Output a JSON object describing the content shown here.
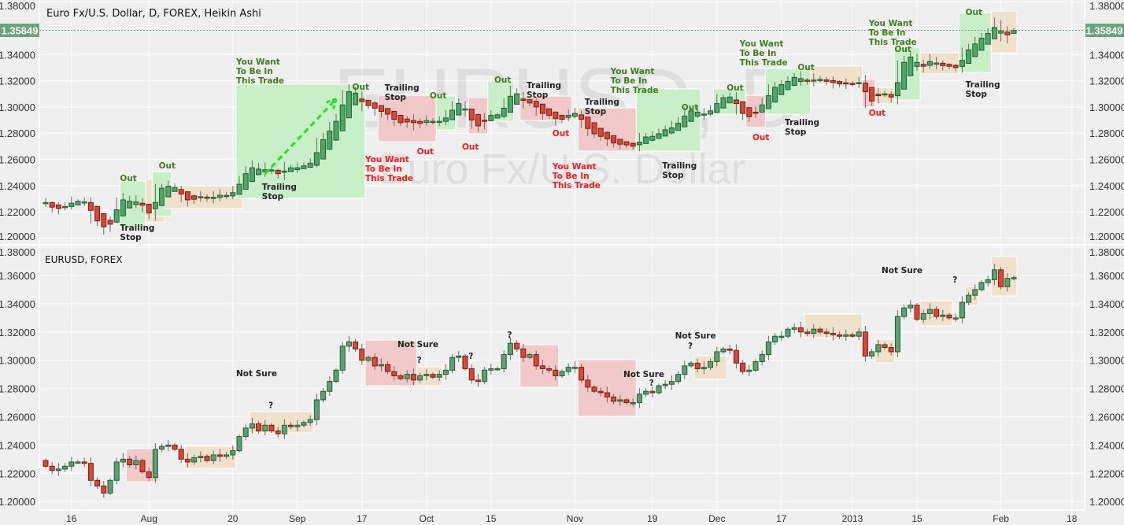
{
  "top_panel": {
    "title": "Euro Fx/U.S. Dollar, D, FOREX, Heikin Ashi",
    "watermark_symbol": "EURUSD, D",
    "watermark_name": "Euro Fx/U.S. Dollar"
  },
  "bottom_panel": {
    "title": "EURUSD, FOREX"
  },
  "last_price": "1.35849",
  "colors": {
    "background": "#efefef",
    "grid": "#f8f8f8",
    "up_fill": "#5e9f74",
    "up_border": "#1f5c32",
    "ha_up_fill": "#4fa765",
    "down_fill": "#d9473a",
    "down_border": "#7a1a10",
    "price_tag": "#6aa37a",
    "box_green": "#c8efc8",
    "box_red": "#f2c9c9",
    "box_tan": "#efe1cc",
    "label_green": "#3e7d1e",
    "label_red": "#ff1a1a",
    "label_black": "#222222",
    "arrow": "#1ee61e"
  },
  "chart_data": [
    {
      "type": "candlestick",
      "panel": "top",
      "title": "Euro Fx/U.S. Dollar, D, FOREX, Heikin Ashi",
      "style": "heikin-ashi (derived from the daily OHLC below)",
      "ylim": [
        1.2,
        1.38
      ],
      "yticks": [
        "1.20000",
        "1.22000",
        "1.24000",
        "1.26000",
        "1.28000",
        "1.30000",
        "1.32000",
        "1.34000",
        "1.36000",
        "1.38000"
      ],
      "grid": true,
      "boxes": [
        {
          "kind": "green",
          "from": "2012-07-26",
          "to": "2012-07-31",
          "top": 1.2435,
          "bottom": 1.208
        },
        {
          "kind": "tan",
          "from": "2012-08-01",
          "to": "2012-08-03",
          "top": 1.2447,
          "bottom": 1.2122
        },
        {
          "kind": "green",
          "from": "2012-08-02",
          "to": "2012-08-06",
          "top": 1.2507,
          "bottom": 1.2165
        },
        {
          "kind": "tan",
          "from": "2012-08-06",
          "to": "2012-08-21",
          "top": 1.2399,
          "bottom": 1.2225
        },
        {
          "kind": "green",
          "from": "2012-08-21",
          "to": "2012-09-17",
          "top": 1.3174,
          "bottom": 1.2303
        },
        {
          "kind": "red",
          "from": "2012-09-20",
          "to": "2012-10-02",
          "top": 1.3089,
          "bottom": 1.2735
        },
        {
          "kind": "green",
          "from": "2012-10-03",
          "to": "2012-10-05",
          "top": 1.3083,
          "bottom": 1.2825
        },
        {
          "kind": "red",
          "from": "2012-10-10",
          "to": "2012-10-12",
          "top": 1.3071,
          "bottom": 1.2795
        },
        {
          "kind": "green",
          "from": "2012-10-15",
          "to": "2012-10-18",
          "top": 1.3197,
          "bottom": 1.2891
        },
        {
          "kind": "red",
          "from": "2012-10-22",
          "to": "2012-10-31",
          "top": 1.3083,
          "bottom": 1.2897
        },
        {
          "kind": "red",
          "from": "2012-11-02",
          "to": "2012-11-14",
          "top": 1.2993,
          "bottom": 1.2663
        },
        {
          "kind": "green",
          "from": "2012-11-15",
          "to": "2012-11-28",
          "top": 1.3138,
          "bottom": 1.2663
        },
        {
          "kind": "green",
          "from": "2012-12-03",
          "to": "2012-12-07",
          "top": 1.3138,
          "bottom": 1.2945
        },
        {
          "kind": "red",
          "from": "2012-12-10",
          "to": "2012-12-12",
          "top": 1.3089,
          "bottom": 1.2843
        },
        {
          "kind": "green",
          "from": "2012-12-13",
          "to": "2012-12-21",
          "top": 1.3294,
          "bottom": 1.2945
        },
        {
          "kind": "tan",
          "from": "2012-12-24",
          "to": "2013-01-02",
          "top": 1.3312,
          "bottom": 1.3174
        },
        {
          "kind": "red",
          "from": "2013-01-03",
          "to": "2013-01-04",
          "top": 1.321,
          "bottom": 1.3
        },
        {
          "kind": "tan",
          "from": "2013-01-07",
          "to": "2013-01-09",
          "top": 1.3149,
          "bottom": 1.3024
        },
        {
          "kind": "green",
          "from": "2013-01-10",
          "to": "2013-01-15",
          "top": 1.3456,
          "bottom": 1.3053
        },
        {
          "kind": "tan",
          "from": "2013-01-16",
          "to": "2013-01-23",
          "top": 1.3414,
          "bottom": 1.3252
        },
        {
          "kind": "green",
          "from": "2013-01-24",
          "to": "2013-01-30",
          "top": 1.372,
          "bottom": 1.3264
        },
        {
          "kind": "tan",
          "from": "2013-01-31",
          "to": "2013-02-05",
          "top": 1.3732,
          "bottom": 1.3414
        }
      ],
      "labels": [
        {
          "text": [
            "Out"
          ],
          "color": "green",
          "date": "2012-07-26",
          "price": 1.2489
        },
        {
          "text": [
            "Trailing",
            "Stop"
          ],
          "color": "black",
          "date": "2012-07-26",
          "price": 1.211
        },
        {
          "text": [
            "Out"
          ],
          "color": "green",
          "date": "2012-08-03",
          "price": 1.2585
        },
        {
          "text": [
            "You Want",
            "To Be In",
            "This Trade"
          ],
          "color": "green",
          "date": "2012-08-21",
          "price": 1.3378
        },
        {
          "text": [
            "Trailing",
            "Stop"
          ],
          "color": "black",
          "date": "2012-08-27",
          "price": 1.2423
        },
        {
          "text": [
            "Out"
          ],
          "color": "green",
          "date": "2012-09-14",
          "price": 1.3186
        },
        {
          "text": [
            "Trailing",
            "Stop"
          ],
          "color": "black",
          "date": "2012-09-21",
          "price": 1.318
        },
        {
          "text": [
            "Out"
          ],
          "color": "red",
          "date": "2012-09-28",
          "price": 1.2693
        },
        {
          "text": [
            "You Want",
            "To Be In",
            "This Trade"
          ],
          "color": "red",
          "date": "2012-09-18",
          "price": 1.2633
        },
        {
          "text": [
            "Out"
          ],
          "color": "green",
          "date": "2012-10-02",
          "price": 1.312
        },
        {
          "text": [
            "Out"
          ],
          "color": "red",
          "date": "2012-10-09",
          "price": 1.2729
        },
        {
          "text": [
            "Out"
          ],
          "color": "green",
          "date": "2012-10-16",
          "price": 1.324
        },
        {
          "text": [
            "Trailing",
            "Stop"
          ],
          "color": "black",
          "date": "2012-10-23",
          "price": 1.3198
        },
        {
          "text": [
            "Out"
          ],
          "color": "red",
          "date": "2012-10-29",
          "price": 1.2831
        },
        {
          "text": [
            "Trailing",
            "Stop"
          ],
          "color": "black",
          "date": "2012-11-05",
          "price": 1.3071
        },
        {
          "text": [
            "You Want",
            "To Be In",
            "This Trade"
          ],
          "color": "red",
          "date": "2012-10-29",
          "price": 1.2579
        },
        {
          "text": [
            "You Want",
            "To Be In",
            "This Trade"
          ],
          "color": "green",
          "date": "2012-11-09",
          "price": 1.3306
        },
        {
          "text": [
            "Out"
          ],
          "color": "green",
          "date": "2012-11-26",
          "price": 1.3029
        },
        {
          "text": [
            "Trailing",
            "Stop"
          ],
          "color": "black",
          "date": "2012-11-21",
          "price": 1.2585
        },
        {
          "text": [
            "Out"
          ],
          "color": "green",
          "date": "2012-12-05",
          "price": 1.318
        },
        {
          "text": [
            "Out"
          ],
          "color": "red",
          "date": "2012-12-11",
          "price": 1.28
        },
        {
          "text": [
            "You Want",
            "To Be In",
            "This Trade"
          ],
          "color": "green",
          "date": "2012-12-07",
          "price": 1.3516
        },
        {
          "text": [
            "Trailing",
            "Stop"
          ],
          "color": "black",
          "date": "2012-12-18",
          "price": 1.2915
        },
        {
          "text": [
            "Out"
          ],
          "color": "green",
          "date": "2012-12-20",
          "price": 1.3336
        },
        {
          "text": [
            "Out"
          ],
          "color": "red",
          "date": "2013-01-04",
          "price": 1.2987
        },
        {
          "text": [
            "You Want",
            "To Be In",
            "This Trade"
          ],
          "color": "green",
          "date": "2013-01-04",
          "price": 1.3672
        },
        {
          "text": [
            "Out"
          ],
          "color": "green",
          "date": "2013-01-10",
          "price": 1.3474
        },
        {
          "text": [
            "Out"
          ],
          "color": "green",
          "date": "2013-01-25",
          "price": 1.3756
        },
        {
          "text": [
            "Trailing",
            "Stop"
          ],
          "color": "black",
          "date": "2013-01-25",
          "price": 1.3204
        }
      ],
      "arrow": {
        "from_date": "2012-08-27",
        "from_price": 1.249,
        "to_date": "2012-09-11",
        "to_price": 1.306,
        "style": "dashed"
      }
    },
    {
      "type": "candlestick",
      "panel": "bottom",
      "title": "EURUSD, FOREX",
      "ylim": [
        1.2,
        1.38
      ],
      "yticks": [
        "1.20000",
        "1.22000",
        "1.24000",
        "1.26000",
        "1.28000",
        "1.30000",
        "1.32000",
        "1.34000",
        "1.36000",
        "1.38000"
      ],
      "grid": true,
      "xticks": [
        {
          "label": "16",
          "date": "2012-07-16"
        },
        {
          "label": "Aug",
          "date": "2012-08-01"
        },
        {
          "label": "20",
          "date": "2012-08-20"
        },
        {
          "label": "Sep",
          "date": "2012-09-03"
        },
        {
          "label": "17",
          "date": "2012-09-17"
        },
        {
          "label": "Oct",
          "date": "2012-10-01"
        },
        {
          "label": "15",
          "date": "2012-10-15"
        },
        {
          "label": "Nov",
          "date": "2012-11-01"
        },
        {
          "label": "19",
          "date": "2012-11-19"
        },
        {
          "label": "Dec",
          "date": "2012-12-03"
        },
        {
          "label": "17",
          "date": "2012-12-17"
        },
        {
          "label": "2013",
          "date": "2013-01-01"
        },
        {
          "label": "15",
          "date": "2013-01-15"
        },
        {
          "label": "Feb",
          "date": "2013-02-01"
        },
        {
          "label": "18",
          "date": "2013-02-18"
        }
      ],
      "close": [
        1.225,
        1.222,
        1.223,
        1.225,
        1.228,
        1.228,
        1.227,
        1.215,
        1.211,
        1.206,
        1.215,
        1.228,
        1.23,
        1.226,
        1.229,
        1.221,
        1.217,
        1.237,
        1.239,
        1.24,
        1.237,
        1.23,
        1.228,
        1.231,
        1.232,
        1.229,
        1.233,
        1.232,
        1.233,
        1.236,
        1.246,
        1.252,
        1.255,
        1.25,
        1.254,
        1.25,
        1.248,
        1.254,
        1.253,
        1.254,
        1.256,
        1.258,
        1.272,
        1.278,
        1.285,
        1.293,
        1.31,
        1.313,
        1.308,
        1.3,
        1.302,
        1.296,
        1.297,
        1.292,
        1.289,
        1.287,
        1.29,
        1.286,
        1.289,
        1.29,
        1.288,
        1.29,
        1.293,
        1.302,
        1.303,
        1.294,
        1.286,
        1.285,
        1.293,
        1.294,
        1.294,
        1.304,
        1.312,
        1.308,
        1.302,
        1.304,
        1.296,
        1.294,
        1.293,
        1.289,
        1.292,
        1.295,
        1.295,
        1.286,
        1.281,
        1.278,
        1.277,
        1.274,
        1.271,
        1.272,
        1.27,
        1.27,
        1.276,
        1.278,
        1.277,
        1.282,
        1.283,
        1.285,
        1.29,
        1.296,
        1.298,
        1.294,
        1.295,
        1.299,
        1.306,
        1.308,
        1.307,
        1.298,
        1.292,
        1.293,
        1.299,
        1.304,
        1.313,
        1.317,
        1.317,
        1.322,
        1.323,
        1.32,
        1.319,
        1.322,
        1.32,
        1.319,
        1.318,
        1.317,
        1.318,
        1.317,
        1.32,
        1.303,
        1.306,
        1.311,
        1.309,
        1.306,
        1.331,
        1.337,
        1.339,
        1.329,
        1.333,
        1.336,
        1.331,
        1.332,
        1.33,
        1.33,
        1.341,
        1.346,
        1.35,
        1.355,
        1.357,
        1.364,
        1.352,
        1.358,
        1.35849
      ],
      "boxes": [
        {
          "kind": "red",
          "from": "2012-07-27",
          "to": "2012-08-02",
          "top": 1.2374,
          "bottom": 1.214
        },
        {
          "kind": "tan",
          "from": "2012-08-09",
          "to": "2012-08-20",
          "top": 1.2391,
          "bottom": 1.2235
        },
        {
          "kind": "tan",
          "from": "2012-08-23",
          "to": "2012-09-05",
          "top": 1.2636,
          "bottom": 1.2486
        },
        {
          "kind": "red",
          "from": "2012-09-18",
          "to": "2012-09-27",
          "top": 1.3143,
          "bottom": 1.282
        },
        {
          "kind": "tan",
          "from": "2012-09-28",
          "to": "2012-10-03",
          "top": 1.2954,
          "bottom": 1.282
        },
        {
          "kind": "red",
          "from": "2012-10-22",
          "to": "2012-10-29",
          "top": 1.311,
          "bottom": 1.2809
        },
        {
          "kind": "red",
          "from": "2012-11-02",
          "to": "2012-11-14",
          "top": 1.3004,
          "bottom": 1.2603
        },
        {
          "kind": "tan",
          "from": "2012-11-28",
          "to": "2012-12-04",
          "top": 1.3032,
          "bottom": 1.2865
        },
        {
          "kind": "tan",
          "from": "2012-12-21",
          "to": "2013-01-02",
          "top": 1.3327,
          "bottom": 1.316
        },
        {
          "kind": "tan",
          "from": "2013-01-07",
          "to": "2013-01-09",
          "top": 1.3149,
          "bottom": 1.2982
        },
        {
          "kind": "tan",
          "from": "2013-01-16",
          "to": "2013-01-22",
          "top": 1.3422,
          "bottom": 1.3244
        },
        {
          "kind": "tan",
          "from": "2013-01-25",
          "to": "2013-01-28",
          "top": 1.352,
          "bottom": 1.3388
        },
        {
          "kind": "tan",
          "from": "2013-01-31",
          "to": "2013-02-05",
          "top": 1.3734,
          "bottom": 1.3455
        }
      ],
      "labels": [
        {
          "text": [
            "Not Sure"
          ],
          "color": "black",
          "date": "2012-08-21",
          "price": 1.2937
        },
        {
          "text": [
            "?"
          ],
          "color": "black",
          "date": "2012-08-28",
          "price": 1.2711
        },
        {
          "text": [
            "Not Sure"
          ],
          "color": "black",
          "date": "2012-09-25",
          "price": 1.3143
        },
        {
          "text": [
            "?"
          ],
          "color": "black",
          "date": "2012-09-28",
          "price": 1.3032
        },
        {
          "text": [
            "?"
          ],
          "color": "black",
          "date": "2012-10-10",
          "price": 1.306
        },
        {
          "text": [
            "?"
          ],
          "color": "black",
          "date": "2012-10-18",
          "price": 1.321
        },
        {
          "text": [
            "Not Sure"
          ],
          "color": "black",
          "date": "2012-11-13",
          "price": 1.2931
        },
        {
          "text": [
            "?"
          ],
          "color": "black",
          "date": "2012-11-19",
          "price": 1.287
        },
        {
          "text": [
            "Not Sure"
          ],
          "color": "black",
          "date": "2012-11-23",
          "price": 1.3204
        },
        {
          "text": [
            "?"
          ],
          "color": "black",
          "date": "2012-11-27",
          "price": 1.3132
        },
        {
          "text": [
            "Not Sure"
          ],
          "color": "black",
          "date": "2013-01-08",
          "price": 1.3667
        },
        {
          "text": [
            "?"
          ],
          "color": "black",
          "date": "2013-01-23",
          "price": 1.36
        }
      ]
    }
  ]
}
